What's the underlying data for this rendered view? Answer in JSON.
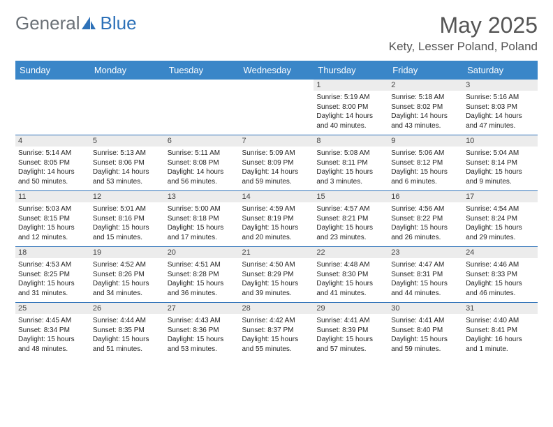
{
  "logo": {
    "general": "General",
    "blue": "Blue"
  },
  "header": {
    "title": "May 2025",
    "subtitle": "Kety, Lesser Poland, Poland"
  },
  "colors": {
    "header_bg": "#3a86c8",
    "header_fg": "#ffffff",
    "row_divider": "#2d71b8",
    "daynum_bg": "#ececec",
    "text": "#222222",
    "title_color": "#555555",
    "logo_gray": "#6a7076",
    "logo_blue": "#2d71b8",
    "background": "#ffffff"
  },
  "fonts": {
    "title_pt": 32,
    "subtitle_pt": 17,
    "logo_pt": 26,
    "th_pt": 13,
    "daynum_pt": 11,
    "body_pt": 10
  },
  "calendar": {
    "type": "table",
    "days": [
      "Sunday",
      "Monday",
      "Tuesday",
      "Wednesday",
      "Thursday",
      "Friday",
      "Saturday"
    ],
    "weeks": [
      [
        null,
        null,
        null,
        null,
        {
          "n": "1",
          "sr": "5:19 AM",
          "ss": "8:00 PM",
          "dl": "14 hours and 40 minutes."
        },
        {
          "n": "2",
          "sr": "5:18 AM",
          "ss": "8:02 PM",
          "dl": "14 hours and 43 minutes."
        },
        {
          "n": "3",
          "sr": "5:16 AM",
          "ss": "8:03 PM",
          "dl": "14 hours and 47 minutes."
        }
      ],
      [
        {
          "n": "4",
          "sr": "5:14 AM",
          "ss": "8:05 PM",
          "dl": "14 hours and 50 minutes."
        },
        {
          "n": "5",
          "sr": "5:13 AM",
          "ss": "8:06 PM",
          "dl": "14 hours and 53 minutes."
        },
        {
          "n": "6",
          "sr": "5:11 AM",
          "ss": "8:08 PM",
          "dl": "14 hours and 56 minutes."
        },
        {
          "n": "7",
          "sr": "5:09 AM",
          "ss": "8:09 PM",
          "dl": "14 hours and 59 minutes."
        },
        {
          "n": "8",
          "sr": "5:08 AM",
          "ss": "8:11 PM",
          "dl": "15 hours and 3 minutes."
        },
        {
          "n": "9",
          "sr": "5:06 AM",
          "ss": "8:12 PM",
          "dl": "15 hours and 6 minutes."
        },
        {
          "n": "10",
          "sr": "5:04 AM",
          "ss": "8:14 PM",
          "dl": "15 hours and 9 minutes."
        }
      ],
      [
        {
          "n": "11",
          "sr": "5:03 AM",
          "ss": "8:15 PM",
          "dl": "15 hours and 12 minutes."
        },
        {
          "n": "12",
          "sr": "5:01 AM",
          "ss": "8:16 PM",
          "dl": "15 hours and 15 minutes."
        },
        {
          "n": "13",
          "sr": "5:00 AM",
          "ss": "8:18 PM",
          "dl": "15 hours and 17 minutes."
        },
        {
          "n": "14",
          "sr": "4:59 AM",
          "ss": "8:19 PM",
          "dl": "15 hours and 20 minutes."
        },
        {
          "n": "15",
          "sr": "4:57 AM",
          "ss": "8:21 PM",
          "dl": "15 hours and 23 minutes."
        },
        {
          "n": "16",
          "sr": "4:56 AM",
          "ss": "8:22 PM",
          "dl": "15 hours and 26 minutes."
        },
        {
          "n": "17",
          "sr": "4:54 AM",
          "ss": "8:24 PM",
          "dl": "15 hours and 29 minutes."
        }
      ],
      [
        {
          "n": "18",
          "sr": "4:53 AM",
          "ss": "8:25 PM",
          "dl": "15 hours and 31 minutes."
        },
        {
          "n": "19",
          "sr": "4:52 AM",
          "ss": "8:26 PM",
          "dl": "15 hours and 34 minutes."
        },
        {
          "n": "20",
          "sr": "4:51 AM",
          "ss": "8:28 PM",
          "dl": "15 hours and 36 minutes."
        },
        {
          "n": "21",
          "sr": "4:50 AM",
          "ss": "8:29 PM",
          "dl": "15 hours and 39 minutes."
        },
        {
          "n": "22",
          "sr": "4:48 AM",
          "ss": "8:30 PM",
          "dl": "15 hours and 41 minutes."
        },
        {
          "n": "23",
          "sr": "4:47 AM",
          "ss": "8:31 PM",
          "dl": "15 hours and 44 minutes."
        },
        {
          "n": "24",
          "sr": "4:46 AM",
          "ss": "8:33 PM",
          "dl": "15 hours and 46 minutes."
        }
      ],
      [
        {
          "n": "25",
          "sr": "4:45 AM",
          "ss": "8:34 PM",
          "dl": "15 hours and 48 minutes."
        },
        {
          "n": "26",
          "sr": "4:44 AM",
          "ss": "8:35 PM",
          "dl": "15 hours and 51 minutes."
        },
        {
          "n": "27",
          "sr": "4:43 AM",
          "ss": "8:36 PM",
          "dl": "15 hours and 53 minutes."
        },
        {
          "n": "28",
          "sr": "4:42 AM",
          "ss": "8:37 PM",
          "dl": "15 hours and 55 minutes."
        },
        {
          "n": "29",
          "sr": "4:41 AM",
          "ss": "8:39 PM",
          "dl": "15 hours and 57 minutes."
        },
        {
          "n": "30",
          "sr": "4:41 AM",
          "ss": "8:40 PM",
          "dl": "15 hours and 59 minutes."
        },
        {
          "n": "31",
          "sr": "4:40 AM",
          "ss": "8:41 PM",
          "dl": "16 hours and 1 minute."
        }
      ]
    ],
    "labels": {
      "sunrise": "Sunrise:",
      "sunset": "Sunset:",
      "daylight": "Daylight:"
    }
  }
}
